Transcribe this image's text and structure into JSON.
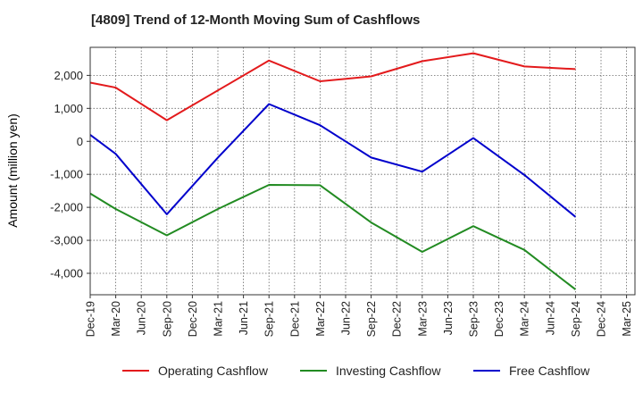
{
  "title": "[4809]  Trend of 12-Month Moving Sum of Cashflows",
  "chart_data": {
    "type": "line",
    "title": "[4809]  Trend of 12-Month Moving Sum of Cashflows",
    "xlabel": "",
    "ylabel": "Amount (million yen)",
    "x": [
      "Dec-19",
      "Mar-20",
      "Jun-20",
      "Sep-20",
      "Dec-20",
      "Mar-21",
      "Jun-21",
      "Sep-21",
      "Dec-21",
      "Mar-22",
      "Jun-22",
      "Sep-22",
      "Dec-22",
      "Mar-23",
      "Jun-23",
      "Sep-23",
      "Dec-23",
      "Mar-24",
      "Jun-24",
      "Sep-24",
      "Dec-24",
      "Mar-25"
    ],
    "yticks": [
      -4000,
      -3000,
      -2000,
      -1000,
      0,
      1000,
      2000
    ],
    "ytick_labels": [
      "-4,000",
      "-3,000",
      "-2,000",
      "-1,000",
      "0",
      "1,000",
      "2,000"
    ],
    "ylim": [
      -4650,
      2850
    ],
    "grid": true,
    "legend_position": "bottom",
    "series": [
      {
        "name": "Operating Cashflow",
        "color": "#e31a1c",
        "points": [
          [
            "Dec-19",
            1780
          ],
          [
            "Mar-20",
            1630
          ],
          [
            "Sep-20",
            640
          ],
          [
            "Sep-21",
            2450
          ],
          [
            "Mar-22",
            1820
          ],
          [
            "Sep-22",
            1970
          ],
          [
            "Mar-23",
            2430
          ],
          [
            "Sep-23",
            2670
          ],
          [
            "Mar-24",
            2270
          ],
          [
            "Sep-24",
            2190
          ]
        ]
      },
      {
        "name": "Investing Cashflow",
        "color": "#228b22",
        "points": [
          [
            "Dec-19",
            -1580
          ],
          [
            "Mar-20",
            -2050
          ],
          [
            "Sep-20",
            -2850
          ],
          [
            "Mar-21",
            -2050
          ],
          [
            "Sep-21",
            -1320
          ],
          [
            "Mar-22",
            -1330
          ],
          [
            "Sep-22",
            -2460
          ],
          [
            "Mar-23",
            -3350
          ],
          [
            "Sep-23",
            -2570
          ],
          [
            "Mar-24",
            -3290
          ],
          [
            "Sep-24",
            -4490
          ]
        ]
      },
      {
        "name": "Free Cashflow",
        "color": "#0000cc",
        "points": [
          [
            "Dec-19",
            200
          ],
          [
            "Mar-20",
            -380
          ],
          [
            "Sep-20",
            -2210
          ],
          [
            "Mar-21",
            -490
          ],
          [
            "Sep-21",
            1130
          ],
          [
            "Mar-22",
            490
          ],
          [
            "Sep-22",
            -490
          ],
          [
            "Mar-23",
            -920
          ],
          [
            "Sep-23",
            100
          ],
          [
            "Mar-24",
            -1020
          ],
          [
            "Sep-24",
            -2290
          ]
        ]
      }
    ]
  }
}
